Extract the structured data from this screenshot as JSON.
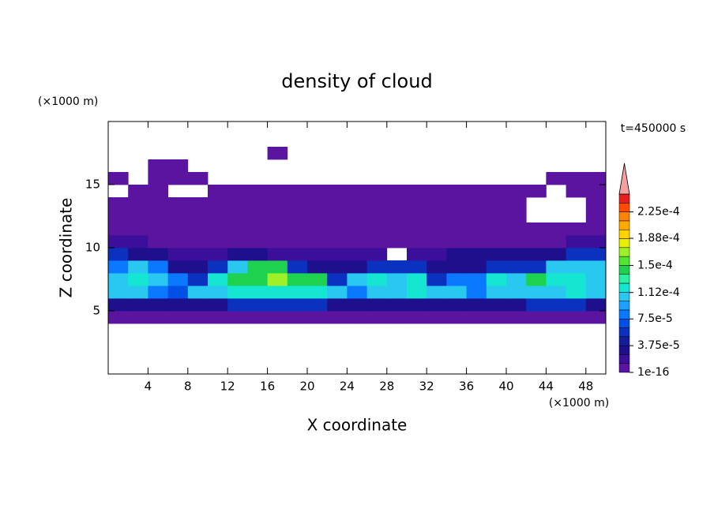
{
  "chart_data": {
    "type": "contour",
    "title": "density of cloud",
    "x_label": "X coordinate",
    "y_label": "Z coordinate",
    "x_unit": "(×1000 m)",
    "y_unit": "(×1000 m)",
    "annotation": "t=450000 s",
    "xlim": [
      0,
      50
    ],
    "ylim": [
      0,
      20
    ],
    "xticks": [
      4,
      8,
      12,
      16,
      20,
      24,
      28,
      32,
      36,
      40,
      44,
      48
    ],
    "yticks": [
      5,
      10,
      15
    ],
    "x": [
      1,
      3,
      5,
      7,
      9,
      11,
      13,
      15,
      17,
      19,
      21,
      23,
      25,
      27,
      29,
      31,
      33,
      35,
      37,
      39,
      41,
      43,
      45,
      47,
      49
    ],
    "z": [
      4.5,
      5.5,
      6.5,
      7.5,
      8.5,
      9.5,
      10.5,
      11.5,
      12.5,
      13.5,
      14.5,
      15.5,
      16.5,
      17.5
    ],
    "values": [
      [
        5e-06,
        5e-06,
        5e-06,
        5e-06,
        5e-06,
        5e-06,
        5e-06,
        5e-06,
        5e-06,
        5e-06,
        5e-06,
        5e-06,
        5e-06,
        5e-06,
        5e-06,
        5e-06,
        5e-06,
        5e-06,
        5e-06,
        5e-06,
        5e-06,
        5e-06,
        5e-06,
        5e-06,
        5e-06
      ],
      [
        3e-05,
        3e-05,
        3e-05,
        3e-05,
        3e-05,
        3e-05,
        5.5e-05,
        5.5e-05,
        5.5e-05,
        5.5e-05,
        5.5e-05,
        3e-05,
        3e-05,
        3e-05,
        3e-05,
        3e-05,
        3e-05,
        3e-05,
        3e-05,
        3e-05,
        3e-05,
        5.5e-05,
        5.5e-05,
        5.5e-05,
        3e-05
      ],
      [
        0.000105,
        0.000105,
        8e-05,
        7e-05,
        0.000105,
        0.000105,
        0.00012,
        0.00012,
        0.00012,
        0.00012,
        0.00012,
        0.000105,
        8e-05,
        0.000105,
        0.000105,
        0.00012,
        0.000105,
        0.000105,
        8e-05,
        0.000105,
        0.000105,
        0.000105,
        0.000105,
        0.00012,
        0.000105
      ],
      [
        0.000105,
        0.00012,
        0.000105,
        8e-05,
        5.5e-05,
        0.00012,
        0.00014,
        0.00014,
        0.00017,
        0.00014,
        0.00014,
        5.5e-05,
        0.000105,
        0.00012,
        0.000105,
        0.00012,
        5.5e-05,
        8e-05,
        8e-05,
        0.00012,
        0.000105,
        0.00014,
        0.00012,
        0.00012,
        0.000105
      ],
      [
        8e-05,
        0.000105,
        8e-05,
        3e-05,
        3e-05,
        5.5e-05,
        0.000105,
        0.00014,
        0.00014,
        5.5e-05,
        3e-05,
        3e-05,
        3e-05,
        5.5e-05,
        5.5e-05,
        5.5e-05,
        3e-05,
        3e-05,
        3e-05,
        5.5e-05,
        5.5e-05,
        5.5e-05,
        0.000105,
        0.000105,
        0.000105
      ],
      [
        5.5e-05,
        3e-05,
        3e-05,
        2e-05,
        2e-05,
        2e-05,
        3e-05,
        3e-05,
        2e-05,
        2e-05,
        2e-05,
        2e-05,
        2e-05,
        2e-05,
        null,
        2e-05,
        2e-05,
        3e-05,
        3e-05,
        3e-05,
        3e-05,
        3e-05,
        3e-05,
        5.5e-05,
        5.5e-05
      ],
      [
        2e-05,
        2e-05,
        5e-06,
        5e-06,
        5e-06,
        5e-06,
        5e-06,
        5e-06,
        5e-06,
        5e-06,
        5e-06,
        5e-06,
        5e-06,
        5e-06,
        5e-06,
        5e-06,
        5e-06,
        5e-06,
        5e-06,
        5e-06,
        5e-06,
        5e-06,
        5e-06,
        2e-05,
        2e-05
      ],
      [
        5e-06,
        5e-06,
        5e-06,
        5e-06,
        5e-06,
        5e-06,
        5e-06,
        5e-06,
        5e-06,
        5e-06,
        5e-06,
        5e-06,
        5e-06,
        5e-06,
        5e-06,
        5e-06,
        5e-06,
        5e-06,
        5e-06,
        5e-06,
        5e-06,
        5e-06,
        5e-06,
        5e-06,
        5e-06
      ],
      [
        5e-06,
        5e-06,
        5e-06,
        5e-06,
        5e-06,
        5e-06,
        5e-06,
        5e-06,
        5e-06,
        5e-06,
        5e-06,
        5e-06,
        5e-06,
        5e-06,
        5e-06,
        5e-06,
        5e-06,
        5e-06,
        5e-06,
        5e-06,
        5e-06,
        null,
        null,
        null,
        5e-06
      ],
      [
        5e-06,
        5e-06,
        5e-06,
        5e-06,
        5e-06,
        5e-06,
        5e-06,
        5e-06,
        5e-06,
        5e-06,
        5e-06,
        5e-06,
        5e-06,
        5e-06,
        5e-06,
        5e-06,
        5e-06,
        5e-06,
        5e-06,
        5e-06,
        5e-06,
        null,
        null,
        null,
        5e-06
      ],
      [
        null,
        5e-06,
        5e-06,
        null,
        null,
        5e-06,
        5e-06,
        5e-06,
        5e-06,
        5e-06,
        5e-06,
        5e-06,
        5e-06,
        5e-06,
        5e-06,
        5e-06,
        5e-06,
        5e-06,
        5e-06,
        5e-06,
        5e-06,
        5e-06,
        null,
        5e-06,
        5e-06
      ],
      [
        5e-06,
        null,
        5e-06,
        5e-06,
        5e-06,
        null,
        null,
        null,
        null,
        null,
        null,
        null,
        null,
        null,
        null,
        null,
        null,
        null,
        null,
        null,
        null,
        null,
        5e-06,
        5e-06,
        5e-06
      ],
      [
        null,
        null,
        5e-06,
        5e-06,
        null,
        null,
        null,
        null,
        null,
        null,
        null,
        null,
        null,
        null,
        null,
        null,
        null,
        null,
        null,
        null,
        null,
        null,
        null,
        null,
        null
      ],
      [
        null,
        null,
        null,
        null,
        null,
        null,
        null,
        null,
        5e-06,
        null,
        null,
        null,
        null,
        null,
        null,
        null,
        null,
        null,
        null,
        null,
        null,
        null,
        null,
        null,
        null
      ]
    ],
    "colorbar": {
      "levels": [
        1e-16,
        1.25e-05,
        2.5e-05,
        3.75e-05,
        5e-05,
        6.25e-05,
        7.5e-05,
        8.75e-05,
        0.0001,
        0.0001125,
        0.000125,
        0.0001375,
        0.00015,
        0.0001625,
        0.000175,
        0.0001875,
        0.0002,
        0.0002125,
        0.000225,
        0.0002375,
        0.00025
      ],
      "colors": [
        "#5a14a0",
        "#3c0f9b",
        "#1e0f8c",
        "#141e9b",
        "#0a32be",
        "#0050e6",
        "#0a78ff",
        "#1ea0ff",
        "#28c8f0",
        "#14e6d2",
        "#28f0a0",
        "#1ed250",
        "#50e632",
        "#a0f028",
        "#e6f000",
        "#ffd200",
        "#ffaa00",
        "#ff8200",
        "#ff4b00",
        "#e61e1e"
      ],
      "over_color": "#f4a0a0",
      "ticks": [
        1e-16,
        {
          "value": 3.75e-05,
          "label": "3.75e-5"
        },
        {
          "value": 7.5e-05,
          "label": "7.5e-5"
        },
        {
          "value": 0.000112,
          "label": "1.12e-4"
        },
        {
          "value": 0.00015,
          "label": "1.5e-4"
        },
        {
          "value": 0.000188,
          "label": "1.88e-4"
        },
        {
          "value": 0.000225,
          "label": "2.25e-4"
        }
      ]
    }
  }
}
